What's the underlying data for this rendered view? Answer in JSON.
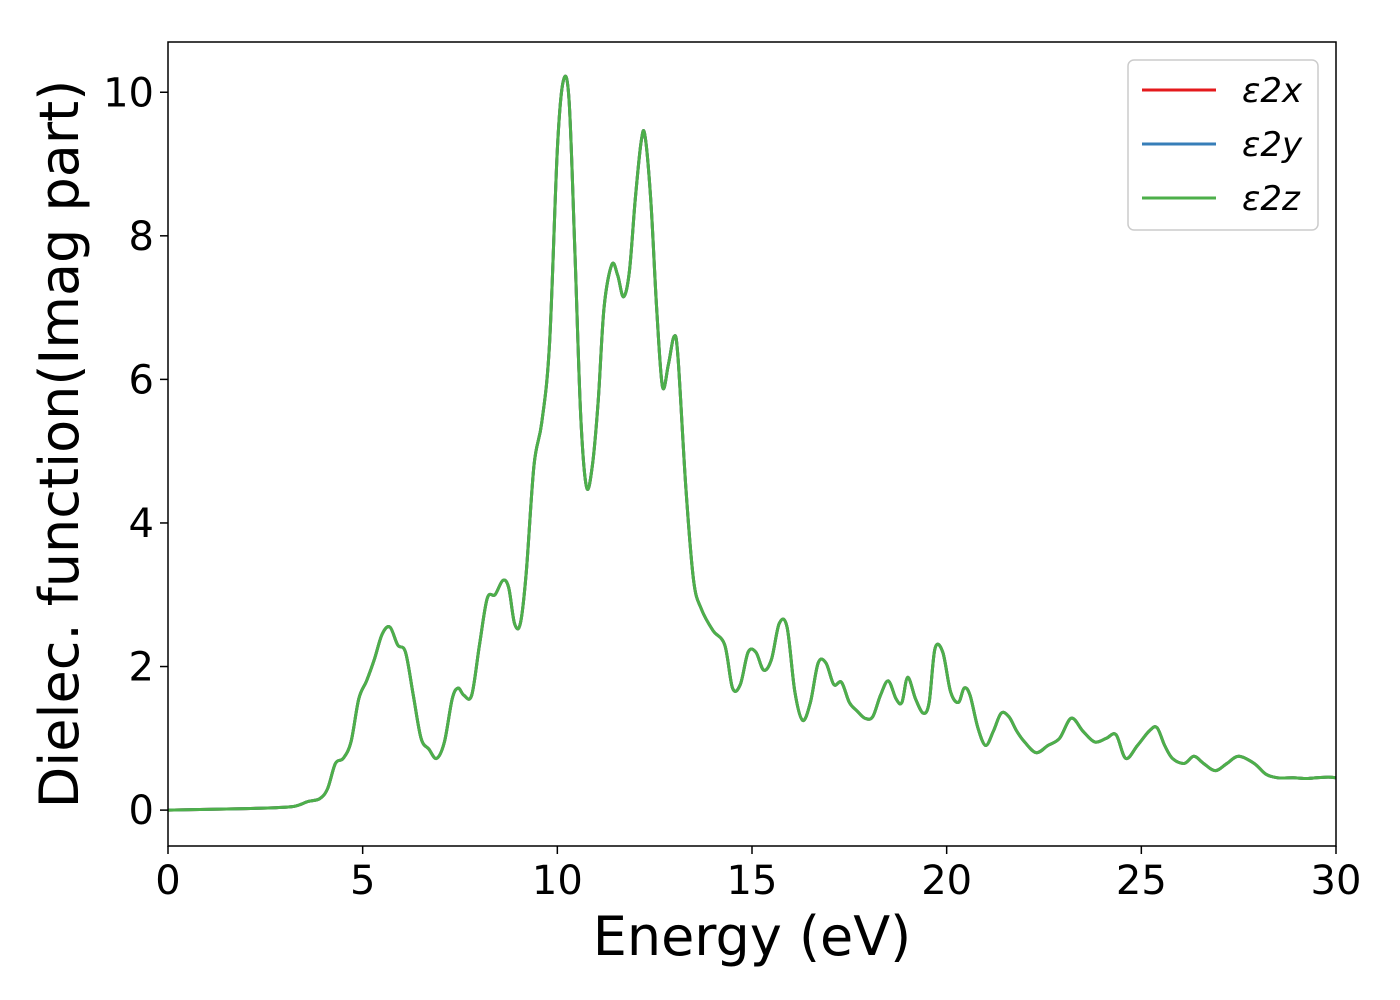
{
  "chart_data": {
    "type": "line",
    "xlabel": "Energy (eV)",
    "ylabel": "Dielec. function(Imag part)",
    "xlim": [
      0,
      30
    ],
    "ylim": [
      -0.5,
      10.7
    ],
    "xticks": [
      0,
      5,
      10,
      15,
      20,
      25,
      30
    ],
    "yticks": [
      0,
      2,
      4,
      6,
      8,
      10
    ],
    "grid": false,
    "legend_position": "top-right",
    "x": [
      0,
      1,
      2,
      3,
      3.3,
      3.6,
      3.9,
      4.1,
      4.3,
      4.5,
      4.7,
      4.9,
      5.1,
      5.3,
      5.5,
      5.7,
      5.9,
      6.1,
      6.3,
      6.5,
      6.7,
      6.9,
      7.1,
      7.3,
      7.45,
      7.6,
      7.8,
      8.0,
      8.2,
      8.4,
      8.6,
      8.75,
      8.9,
      9.05,
      9.2,
      9.4,
      9.6,
      9.8,
      10.0,
      10.15,
      10.3,
      10.45,
      10.6,
      10.75,
      10.9,
      11.05,
      11.2,
      11.4,
      11.55,
      11.7,
      11.85,
      12.0,
      12.15,
      12.25,
      12.4,
      12.55,
      12.7,
      12.85,
      13.0,
      13.1,
      13.3,
      13.5,
      13.7,
      14.0,
      14.3,
      14.5,
      14.7,
      14.9,
      15.1,
      15.3,
      15.5,
      15.7,
      15.9,
      16.1,
      16.3,
      16.5,
      16.7,
      16.9,
      17.1,
      17.3,
      17.5,
      17.7,
      17.9,
      18.1,
      18.3,
      18.5,
      18.7,
      18.85,
      19.0,
      19.2,
      19.4,
      19.55,
      19.7,
      19.9,
      20.1,
      20.3,
      20.45,
      20.6,
      20.8,
      21.0,
      21.2,
      21.4,
      21.6,
      21.8,
      22.0,
      22.3,
      22.6,
      22.9,
      23.2,
      23.5,
      23.8,
      24.1,
      24.35,
      24.6,
      24.9,
      25.2,
      25.4,
      25.6,
      25.8,
      26.1,
      26.35,
      26.6,
      26.9,
      27.2,
      27.5,
      27.9,
      28.2,
      28.5,
      28.9,
      29.2,
      29.5,
      29.8,
      30.0
    ],
    "series": [
      {
        "name": "ε2x",
        "color": "#e41a1c",
        "values": [
          0,
          0.01,
          0.02,
          0.04,
          0.06,
          0.12,
          0.16,
          0.3,
          0.65,
          0.72,
          0.95,
          1.55,
          1.8,
          2.1,
          2.45,
          2.55,
          2.3,
          2.2,
          1.6,
          1.0,
          0.85,
          0.72,
          0.95,
          1.55,
          1.7,
          1.6,
          1.6,
          2.3,
          2.95,
          3.0,
          3.2,
          3.1,
          2.6,
          2.6,
          3.3,
          4.8,
          5.4,
          6.5,
          9.2,
          10.15,
          9.9,
          7.8,
          5.5,
          4.5,
          4.8,
          5.7,
          7.0,
          7.6,
          7.45,
          7.15,
          7.5,
          8.5,
          9.3,
          9.4,
          8.5,
          7.0,
          5.9,
          6.2,
          6.6,
          6.3,
          4.5,
          3.2,
          2.8,
          2.5,
          2.3,
          1.7,
          1.75,
          2.2,
          2.2,
          1.95,
          2.1,
          2.6,
          2.55,
          1.65,
          1.25,
          1.5,
          2.05,
          2.05,
          1.75,
          1.78,
          1.5,
          1.38,
          1.28,
          1.3,
          1.6,
          1.8,
          1.55,
          1.5,
          1.85,
          1.55,
          1.35,
          1.5,
          2.25,
          2.2,
          1.65,
          1.5,
          1.7,
          1.6,
          1.15,
          0.9,
          1.1,
          1.35,
          1.3,
          1.1,
          0.95,
          0.8,
          0.9,
          1.0,
          1.28,
          1.1,
          0.95,
          1.0,
          1.05,
          0.72,
          0.9,
          1.1,
          1.15,
          0.9,
          0.72,
          0.65,
          0.75,
          0.65,
          0.55,
          0.65,
          0.75,
          0.65,
          0.5,
          0.45,
          0.45,
          0.44,
          0.45,
          0.46,
          0.45
        ]
      },
      {
        "name": "ε2y",
        "color": "#377eb8",
        "values": [
          0,
          0.01,
          0.02,
          0.04,
          0.06,
          0.12,
          0.16,
          0.3,
          0.65,
          0.72,
          0.95,
          1.55,
          1.8,
          2.1,
          2.45,
          2.55,
          2.3,
          2.2,
          1.6,
          1.0,
          0.85,
          0.72,
          0.95,
          1.55,
          1.7,
          1.6,
          1.6,
          2.3,
          2.95,
          3.0,
          3.2,
          3.1,
          2.6,
          2.6,
          3.3,
          4.8,
          5.4,
          6.5,
          9.2,
          10.15,
          9.9,
          7.8,
          5.5,
          4.5,
          4.8,
          5.7,
          7.0,
          7.6,
          7.45,
          7.15,
          7.5,
          8.5,
          9.3,
          9.4,
          8.5,
          7.0,
          5.9,
          6.2,
          6.6,
          6.3,
          4.5,
          3.2,
          2.8,
          2.5,
          2.3,
          1.7,
          1.75,
          2.2,
          2.2,
          1.95,
          2.1,
          2.6,
          2.55,
          1.65,
          1.25,
          1.5,
          2.05,
          2.05,
          1.75,
          1.78,
          1.5,
          1.38,
          1.28,
          1.3,
          1.6,
          1.8,
          1.55,
          1.5,
          1.85,
          1.55,
          1.35,
          1.5,
          2.25,
          2.2,
          1.65,
          1.5,
          1.7,
          1.6,
          1.15,
          0.9,
          1.1,
          1.35,
          1.3,
          1.1,
          0.95,
          0.8,
          0.9,
          1.0,
          1.28,
          1.1,
          0.95,
          1.0,
          1.05,
          0.72,
          0.9,
          1.1,
          1.15,
          0.9,
          0.72,
          0.65,
          0.75,
          0.65,
          0.55,
          0.65,
          0.75,
          0.65,
          0.5,
          0.45,
          0.45,
          0.44,
          0.45,
          0.46,
          0.45
        ]
      },
      {
        "name": "ε2z",
        "color": "#4daf4a",
        "values": [
          0,
          0.01,
          0.02,
          0.04,
          0.06,
          0.12,
          0.16,
          0.3,
          0.65,
          0.72,
          0.95,
          1.55,
          1.8,
          2.1,
          2.45,
          2.55,
          2.3,
          2.2,
          1.6,
          1.0,
          0.85,
          0.72,
          0.95,
          1.55,
          1.7,
          1.6,
          1.6,
          2.3,
          2.95,
          3.0,
          3.2,
          3.1,
          2.6,
          2.6,
          3.3,
          4.8,
          5.4,
          6.5,
          9.2,
          10.15,
          9.9,
          7.8,
          5.5,
          4.5,
          4.8,
          5.7,
          7.0,
          7.6,
          7.45,
          7.15,
          7.5,
          8.5,
          9.3,
          9.4,
          8.5,
          7.0,
          5.9,
          6.2,
          6.6,
          6.3,
          4.5,
          3.2,
          2.8,
          2.5,
          2.3,
          1.7,
          1.75,
          2.2,
          2.2,
          1.95,
          2.1,
          2.6,
          2.55,
          1.65,
          1.25,
          1.5,
          2.05,
          2.05,
          1.75,
          1.78,
          1.5,
          1.38,
          1.28,
          1.3,
          1.6,
          1.8,
          1.55,
          1.5,
          1.85,
          1.55,
          1.35,
          1.5,
          2.25,
          2.2,
          1.65,
          1.5,
          1.7,
          1.6,
          1.15,
          0.9,
          1.1,
          1.35,
          1.3,
          1.1,
          0.95,
          0.8,
          0.9,
          1.0,
          1.28,
          1.1,
          0.95,
          1.0,
          1.05,
          0.72,
          0.9,
          1.1,
          1.15,
          0.9,
          0.72,
          0.65,
          0.75,
          0.65,
          0.55,
          0.65,
          0.75,
          0.65,
          0.5,
          0.45,
          0.45,
          0.44,
          0.45,
          0.46,
          0.45
        ]
      }
    ]
  }
}
